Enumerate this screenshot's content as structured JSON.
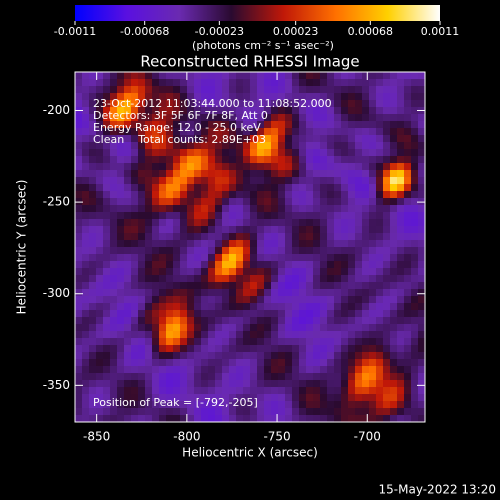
{
  "chart_data": {
    "type": "image",
    "title": "Reconstructed RHESSI Image",
    "xlabel": "Heliocentric X (arcsec)",
    "ylabel": "Heliocentric Y (arcsec)",
    "xlim": [
      -862,
      -668
    ],
    "ylim": [
      -370,
      -179
    ],
    "xticks": [
      -850,
      -800,
      -750,
      -700
    ],
    "yticks": [
      -350,
      -300,
      -250,
      -200
    ],
    "colorbar": {
      "label": "(photons cm⁻² s⁻¹ asec⁻²)",
      "lim": [
        -0.0011,
        0.0011
      ],
      "ticks": [
        -0.0011,
        -0.00068,
        -0.00023,
        0.00023,
        0.00068,
        0.0011
      ],
      "colormap": [
        "#0000ff",
        "#5a10e0",
        "#6a2ab0",
        "#2a0a30",
        "#c01808",
        "#ff7000",
        "#ffd000",
        "#ffffff"
      ]
    },
    "annotations": [
      "23-Oct-2012 11:03:44.000 to 11:08:52.000",
      "Detectors: 3F 5F 6F 7F 8F, Att 0",
      "Energy Range: 12.0 - 25.0 keV",
      "Clean    Total counts: 2.89E+03"
    ],
    "peak_label": "Position of Peak = [-792,-205]",
    "timestamp": "15-May-2022 13:20"
  }
}
